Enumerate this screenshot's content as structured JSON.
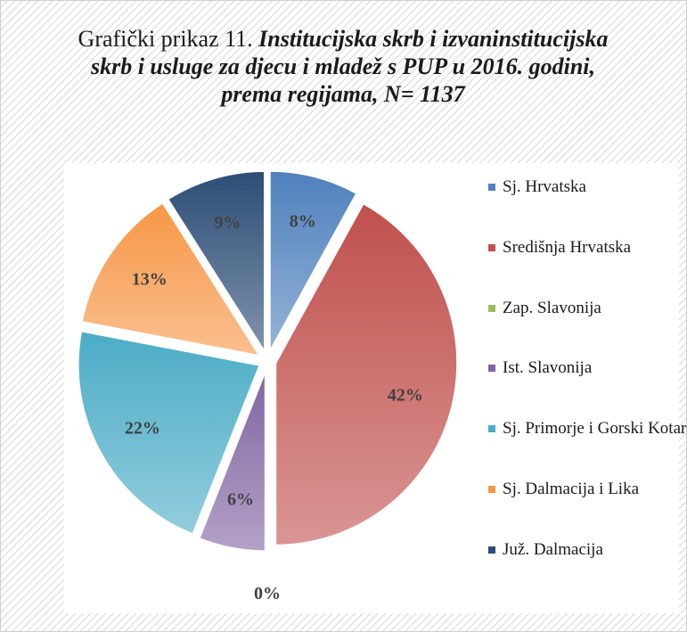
{
  "chart_data": {
    "type": "pie",
    "title_parts": [
      "Grafički prikaz 11.",
      "Institucijska skrb i izvaninstitucijska skrb i usluge za djecu i mladež s PUP u 2016. godini, prema regijama, N= 1137"
    ],
    "categories": [
      "Sj. Hrvatska",
      "Središnja Hrvatska",
      "Zap. Slavonija",
      "Ist. Slavonija",
      "Sj. Primorje i Gorski Kotar",
      "Sj. Dalmacija i Lika",
      "Juž. Dalmacija"
    ],
    "values": [
      8,
      42,
      0,
      6,
      22,
      13,
      9
    ],
    "value_labels": [
      "8%",
      "42%",
      "0%",
      "6%",
      "22%",
      "13%",
      "9%"
    ],
    "colors": [
      "#4f81bd",
      "#c0504d",
      "#9bbb59",
      "#8064a2",
      "#4bacc6",
      "#f79646",
      "#2c4d75"
    ],
    "legend": "right"
  }
}
